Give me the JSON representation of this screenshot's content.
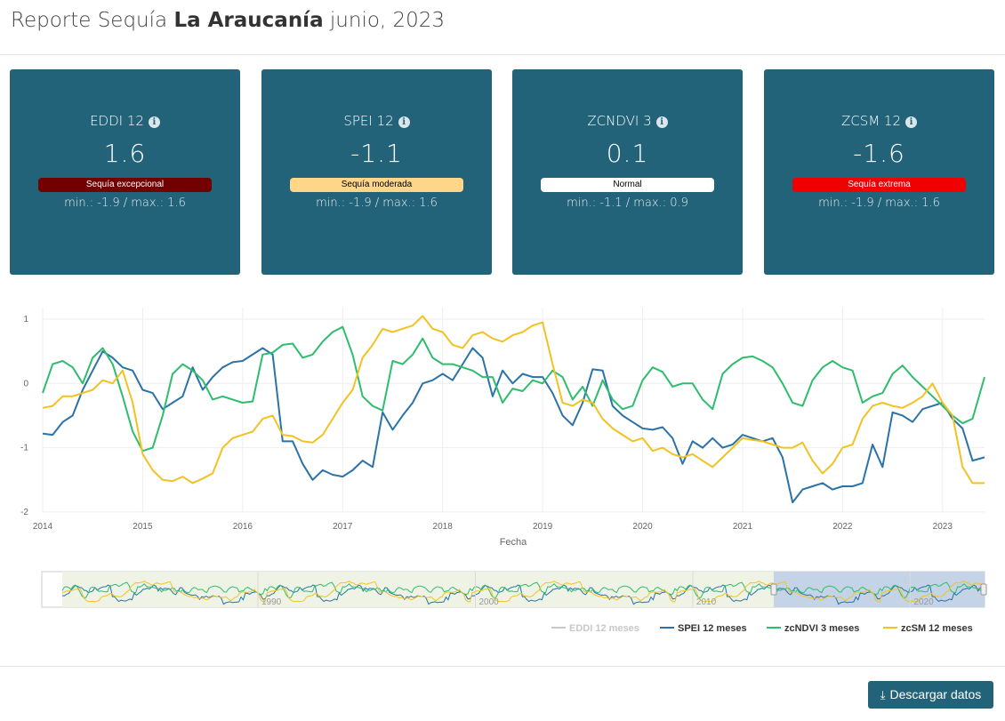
{
  "header": {
    "prefix": "Reporte Sequía",
    "region": "La Araucanía",
    "period": "junio, 2023"
  },
  "cards": [
    {
      "title": "EDDI 12",
      "value": "1.6",
      "status": "Sequía excepcional",
      "range": "min.: -1.9 / max.: 1.6",
      "badge_bg": "#720000",
      "badge_fg": "#ffffff"
    },
    {
      "title": "SPEI 12",
      "value": "-1.1",
      "status": "Sequía moderada",
      "range": "min.: -1.9 / max.: 1.6",
      "badge_bg": "#fdd68a",
      "badge_fg": "#000000"
    },
    {
      "title": "ZCNDVI 3",
      "value": "0.1",
      "status": "Normal",
      "range": "min.: -1.1 / max.: 0.9",
      "badge_bg": "#ffffff",
      "badge_fg": "#000000"
    },
    {
      "title": "ZCSM 12",
      "value": "-1.6",
      "status": "Sequía extrema",
      "range": "min.: -1.9 / max.: 1.6",
      "badge_bg": "#f00000",
      "badge_fg": "#ffffff"
    }
  ],
  "chart_data": {
    "type": "line",
    "xlabel": "Fecha",
    "ylabel": "",
    "x_range": [
      2014.0,
      2023.42
    ],
    "ylim": [
      -2,
      1.2
    ],
    "y_ticks": [
      1,
      0,
      -1,
      -2
    ],
    "x_ticks": [
      "2014",
      "2015",
      "2016",
      "2017",
      "2018",
      "2019",
      "2020",
      "2021",
      "2022",
      "2023"
    ],
    "grid": true,
    "legend_position": "bottom-right",
    "series": [
      {
        "name": "EDDI 12 meses",
        "color": "#c8c8c8",
        "visible": false,
        "x": [],
        "y": []
      },
      {
        "name": "SPEI 12 meses",
        "color": "#2b73a6",
        "visible": true,
        "x": [
          2014.0,
          2014.1,
          2014.2,
          2014.3,
          2014.4,
          2014.5,
          2014.6,
          2014.7,
          2014.8,
          2014.9,
          2015.0,
          2015.1,
          2015.2,
          2015.3,
          2015.4,
          2015.5,
          2015.6,
          2015.7,
          2015.8,
          2015.9,
          2016.0,
          2016.2,
          2016.3,
          2016.4,
          2016.5,
          2016.6,
          2016.7,
          2016.8,
          2016.9,
          2017.0,
          2017.1,
          2017.2,
          2017.3,
          2017.4,
          2017.5,
          2017.6,
          2017.7,
          2017.8,
          2017.9,
          2018.0,
          2018.1,
          2018.2,
          2018.3,
          2018.4,
          2018.5,
          2018.6,
          2018.7,
          2018.8,
          2018.9,
          2019.0,
          2019.1,
          2019.2,
          2019.3,
          2019.4,
          2019.5,
          2019.6,
          2019.7,
          2019.8,
          2019.9,
          2020.0,
          2020.1,
          2020.2,
          2020.3,
          2020.4,
          2020.5,
          2020.6,
          2020.7,
          2020.8,
          2020.9,
          2021.0,
          2021.1,
          2021.2,
          2021.3,
          2021.4,
          2021.5,
          2021.6,
          2021.7,
          2021.8,
          2021.9,
          2022.0,
          2022.1,
          2022.2,
          2022.3,
          2022.4,
          2022.5,
          2022.6,
          2022.7,
          2022.8,
          2022.9,
          2023.0,
          2023.1,
          2023.2,
          2023.3,
          2023.42
        ],
        "y": [
          -0.78,
          -0.8,
          -0.6,
          -0.5,
          -0.1,
          0.2,
          0.5,
          0.4,
          0.25,
          0.2,
          -0.1,
          -0.15,
          -0.4,
          -0.3,
          -0.2,
          0.25,
          -0.1,
          0.1,
          0.25,
          0.33,
          0.35,
          0.55,
          0.45,
          -0.9,
          -0.9,
          -1.25,
          -1.5,
          -1.35,
          -1.42,
          -1.45,
          -1.35,
          -1.2,
          -1.3,
          -0.45,
          -0.72,
          -0.5,
          -0.3,
          0.0,
          0.05,
          0.15,
          0.05,
          0.3,
          0.55,
          0.4,
          -0.2,
          0.2,
          0.0,
          0.15,
          0.1,
          0.1,
          -0.15,
          -0.5,
          -0.65,
          -0.3,
          0.22,
          0.2,
          -0.35,
          -0.5,
          -0.6,
          -0.7,
          -0.72,
          -0.68,
          -0.85,
          -1.25,
          -0.9,
          -1.0,
          -0.85,
          -1.0,
          -0.95,
          -0.8,
          -0.85,
          -0.9,
          -0.85,
          -1.15,
          -1.85,
          -1.65,
          -1.6,
          -1.55,
          -1.65,
          -1.6,
          -1.6,
          -1.55,
          -0.95,
          -1.3,
          -0.45,
          -0.5,
          -0.6,
          -0.4,
          -0.35,
          -0.3,
          -0.55,
          -0.7,
          -1.2,
          -1.15
        ]
      },
      {
        "name": "zcNDVI 3 meses",
        "color": "#2ebd6d",
        "visible": true,
        "x": [
          2014.0,
          2014.1,
          2014.2,
          2014.3,
          2014.4,
          2014.5,
          2014.6,
          2014.7,
          2014.8,
          2014.9,
          2015.0,
          2015.1,
          2015.2,
          2015.3,
          2015.4,
          2015.5,
          2015.6,
          2015.7,
          2015.8,
          2015.9,
          2016.0,
          2016.1,
          2016.2,
          2016.3,
          2016.4,
          2016.5,
          2016.6,
          2016.7,
          2016.8,
          2016.9,
          2017.0,
          2017.1,
          2017.2,
          2017.3,
          2017.4,
          2017.5,
          2017.6,
          2017.7,
          2017.8,
          2017.9,
          2018.0,
          2018.1,
          2018.2,
          2018.3,
          2018.4,
          2018.5,
          2018.6,
          2018.7,
          2018.8,
          2018.9,
          2019.0,
          2019.1,
          2019.2,
          2019.3,
          2019.4,
          2019.5,
          2019.6,
          2019.7,
          2019.8,
          2019.9,
          2020.0,
          2020.1,
          2020.2,
          2020.3,
          2020.4,
          2020.5,
          2020.6,
          2020.7,
          2020.8,
          2020.9,
          2021.0,
          2021.1,
          2021.2,
          2021.3,
          2021.4,
          2021.5,
          2021.6,
          2021.7,
          2021.8,
          2021.9,
          2022.0,
          2022.1,
          2022.2,
          2022.3,
          2022.4,
          2022.5,
          2022.6,
          2022.7,
          2022.8,
          2022.9,
          2023.0,
          2023.1,
          2023.2,
          2023.3,
          2023.42
        ],
        "y": [
          -0.15,
          0.3,
          0.35,
          0.25,
          0.0,
          0.4,
          0.55,
          0.3,
          -0.2,
          -0.75,
          -1.05,
          -1.0,
          -0.5,
          0.15,
          0.3,
          0.2,
          0.05,
          -0.25,
          -0.2,
          -0.25,
          -0.3,
          -0.28,
          0.45,
          0.48,
          0.6,
          0.62,
          0.4,
          0.45,
          0.65,
          0.8,
          0.88,
          0.45,
          -0.2,
          -0.35,
          -0.42,
          0.35,
          0.3,
          0.45,
          0.7,
          0.4,
          0.3,
          0.3,
          0.25,
          0.2,
          0.1,
          0.1,
          -0.3,
          -0.08,
          -0.12,
          0.05,
          0.0,
          0.2,
          0.1,
          -0.25,
          -0.05,
          -0.35,
          0.05,
          -0.25,
          -0.4,
          -0.35,
          0.05,
          0.25,
          0.18,
          -0.05,
          0.0,
          0.0,
          -0.25,
          -0.4,
          0.15,
          0.3,
          0.4,
          0.42,
          0.35,
          0.25,
          0.0,
          -0.3,
          -0.35,
          0.05,
          0.25,
          0.35,
          0.25,
          0.2,
          -0.3,
          -0.2,
          -0.15,
          0.15,
          0.28,
          0.1,
          -0.05,
          -0.2,
          -0.35,
          -0.5,
          -0.62,
          -0.55,
          0.1
        ]
      },
      {
        "name": "zcSM 12 meses",
        "color": "#f2c220",
        "visible": true,
        "x": [
          2014.0,
          2014.1,
          2014.2,
          2014.3,
          2014.4,
          2014.5,
          2014.6,
          2014.7,
          2014.8,
          2014.9,
          2015.0,
          2015.1,
          2015.2,
          2015.3,
          2015.4,
          2015.5,
          2015.6,
          2015.7,
          2015.8,
          2015.9,
          2016.0,
          2016.1,
          2016.2,
          2016.3,
          2016.4,
          2016.5,
          2016.6,
          2016.7,
          2016.8,
          2016.9,
          2017.0,
          2017.1,
          2017.2,
          2017.3,
          2017.4,
          2017.5,
          2017.6,
          2017.7,
          2017.8,
          2017.9,
          2018.0,
          2018.1,
          2018.2,
          2018.3,
          2018.4,
          2018.5,
          2018.6,
          2018.7,
          2018.8,
          2018.9,
          2019.0,
          2019.1,
          2019.2,
          2019.3,
          2019.4,
          2019.5,
          2019.6,
          2019.7,
          2019.8,
          2019.9,
          2020.0,
          2020.1,
          2020.2,
          2020.3,
          2020.4,
          2020.5,
          2020.6,
          2020.7,
          2020.8,
          2020.9,
          2021.0,
          2021.1,
          2021.2,
          2021.3,
          2021.4,
          2021.5,
          2021.6,
          2021.7,
          2021.8,
          2021.9,
          2022.0,
          2022.1,
          2022.2,
          2022.3,
          2022.4,
          2022.5,
          2022.6,
          2022.7,
          2022.8,
          2022.9,
          2023.0,
          2023.1,
          2023.2,
          2023.3,
          2023.42
        ],
        "y": [
          -0.38,
          -0.35,
          -0.2,
          -0.2,
          -0.15,
          -0.1,
          0.05,
          0.0,
          0.2,
          -0.3,
          -1.1,
          -1.35,
          -1.5,
          -1.52,
          -1.45,
          -1.55,
          -1.48,
          -1.4,
          -1.0,
          -0.85,
          -0.8,
          -0.75,
          -0.55,
          -0.5,
          -0.8,
          -0.82,
          -0.9,
          -0.92,
          -0.8,
          -0.55,
          -0.3,
          -0.1,
          0.4,
          0.6,
          0.85,
          0.8,
          0.85,
          0.9,
          1.05,
          0.85,
          0.8,
          0.6,
          0.55,
          0.75,
          0.8,
          0.7,
          0.65,
          0.75,
          0.8,
          0.9,
          0.95,
          0.3,
          -0.3,
          -0.35,
          -0.25,
          -0.3,
          -0.55,
          -0.7,
          -0.8,
          -0.9,
          -0.85,
          -1.05,
          -1.0,
          -1.1,
          -1.15,
          -1.1,
          -1.2,
          -1.3,
          -1.15,
          -1.0,
          -0.85,
          -0.88,
          -0.9,
          -0.95,
          -1.0,
          -1.0,
          -0.92,
          -1.2,
          -1.4,
          -1.25,
          -1.0,
          -0.95,
          -0.55,
          -0.35,
          -0.3,
          -0.35,
          -0.38,
          -0.3,
          -0.2,
          0.0,
          -0.3,
          -0.5,
          -1.3,
          -1.55,
          -1.55
        ]
      }
    ]
  },
  "range_slider": {
    "ticks": [
      "1990",
      "2000",
      "2010",
      "2020"
    ]
  },
  "download_button": {
    "label": "Descargar datos",
    "icon": "download-icon"
  }
}
